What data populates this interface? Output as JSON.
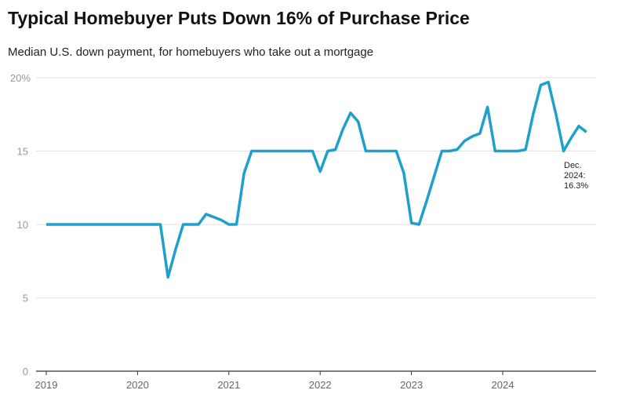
{
  "chart_data": {
    "type": "line",
    "title": "Typical Homebuyer Puts Down 16% of Purchase Price",
    "subtitle": "Median U.S. down payment, for homebuyers who take out a mortgage",
    "xlabel": "",
    "ylabel": "",
    "x_start": "2019-01",
    "frequency": "monthly",
    "x_ticks": [
      "2019",
      "2020",
      "2021",
      "2022",
      "2023",
      "2024"
    ],
    "y_ticks": [
      "0",
      "5",
      "10",
      "15",
      "20%"
    ],
    "ylim": [
      0,
      20
    ],
    "grid": true,
    "line_color": "#1fa0cc",
    "series": [
      {
        "values": [
          10,
          10,
          10,
          10,
          10,
          10,
          10,
          10,
          10,
          10,
          10,
          10,
          10,
          10,
          10,
          10,
          6.4,
          8.3,
          10,
          10,
          10,
          10.7,
          10.5,
          10.3,
          10,
          10,
          13.5,
          15,
          15,
          15,
          15,
          15,
          15,
          15,
          15,
          15,
          13.6,
          15,
          15.1,
          16.5,
          17.6,
          17,
          15,
          15,
          15,
          15,
          15,
          13.5,
          10.1,
          10,
          11.6,
          13.3,
          15,
          15,
          15.1,
          15.7,
          16,
          16.2,
          18,
          15,
          15,
          15,
          15,
          15.1,
          17.5,
          19.5,
          19.7,
          17.5,
          15,
          15.9,
          16.7,
          16.3
        ]
      }
    ],
    "annotation": {
      "lines": [
        "Dec.",
        "2024:",
        "16.3%"
      ]
    }
  }
}
